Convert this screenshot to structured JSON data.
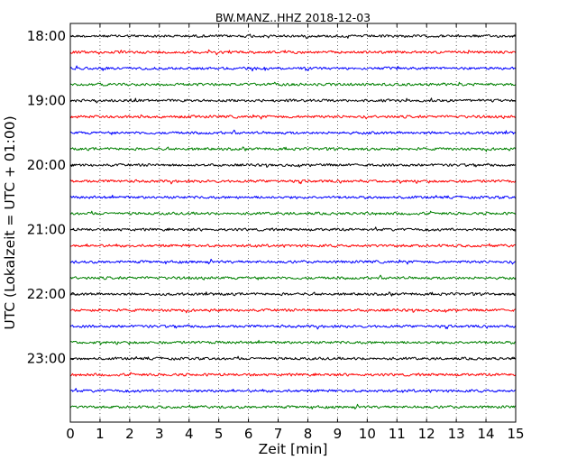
{
  "chart_data": {
    "type": "line",
    "title": "BW.MANZ..HHZ 2018-12-03",
    "xlabel": "Zeit  [min]",
    "ylabel": "UTC (Lokalzeit = UTC + 01:00)",
    "xlim": [
      0,
      15
    ],
    "x_ticks": [
      0,
      1,
      2,
      3,
      4,
      5,
      6,
      7,
      8,
      9,
      10,
      11,
      12,
      13,
      14,
      15
    ],
    "x_tick_labels": [
      "0",
      "1",
      "2",
      "3",
      "4",
      "5",
      "6",
      "7",
      "8",
      "9",
      "10",
      "11",
      "12",
      "13",
      "14",
      "15"
    ],
    "y_tick_labels": [
      "18:00",
      "19:00",
      "20:00",
      "21:00",
      "22:00",
      "23:00"
    ],
    "y_tick_trace_index": [
      0,
      4,
      8,
      12,
      16,
      20
    ],
    "trace_interval_minutes": 15,
    "grid": "vertical dotted",
    "trace_colors": [
      "#000000",
      "#ff0000",
      "#0000ff",
      "#008000"
    ],
    "traces": [
      {
        "start": "18:00",
        "color": "#000000"
      },
      {
        "start": "18:15",
        "color": "#ff0000"
      },
      {
        "start": "18:30",
        "color": "#0000ff"
      },
      {
        "start": "18:45",
        "color": "#008000"
      },
      {
        "start": "19:00",
        "color": "#000000"
      },
      {
        "start": "19:15",
        "color": "#ff0000"
      },
      {
        "start": "19:30",
        "color": "#0000ff"
      },
      {
        "start": "19:45",
        "color": "#008000"
      },
      {
        "start": "20:00",
        "color": "#000000"
      },
      {
        "start": "20:15",
        "color": "#ff0000"
      },
      {
        "start": "20:30",
        "color": "#0000ff"
      },
      {
        "start": "20:45",
        "color": "#008000"
      },
      {
        "start": "21:00",
        "color": "#000000"
      },
      {
        "start": "21:15",
        "color": "#ff0000"
      },
      {
        "start": "21:30",
        "color": "#0000ff"
      },
      {
        "start": "21:45",
        "color": "#008000"
      },
      {
        "start": "22:00",
        "color": "#000000"
      },
      {
        "start": "22:15",
        "color": "#ff0000"
      },
      {
        "start": "22:30",
        "color": "#0000ff"
      },
      {
        "start": "22:45",
        "color": "#008000"
      },
      {
        "start": "23:00",
        "color": "#000000"
      },
      {
        "start": "23:15",
        "color": "#ff0000"
      },
      {
        "start": "23:30",
        "color": "#0000ff"
      },
      {
        "start": "23:45",
        "color": "#008000"
      }
    ]
  }
}
